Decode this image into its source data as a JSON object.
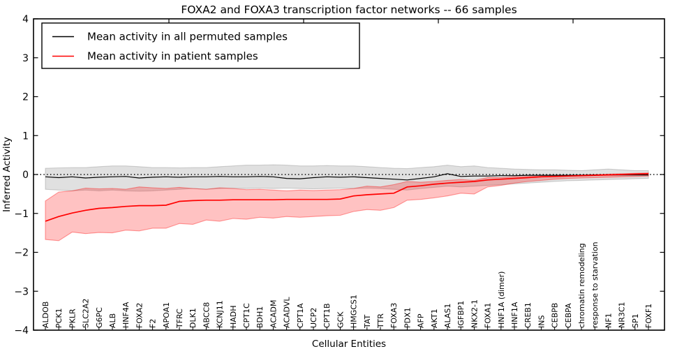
{
  "title": "FOXA2 and FOXA3 transcription factor networks -- 66 samples",
  "axes": {
    "ylabel": "Inferred Activity",
    "xlabel": "Cellular Entities",
    "y_ticks": [
      4,
      3,
      2,
      1,
      0,
      -1,
      -2,
      -3,
      -4
    ],
    "ylim": [
      -4,
      4
    ]
  },
  "legend": {
    "items": [
      {
        "label": "Mean activity in all permuted samples",
        "color": "#000000"
      },
      {
        "label": "Mean activity in patient samples",
        "color": "#ff0000"
      }
    ]
  },
  "colors": {
    "permuted_line": "#000000",
    "patient_line": "#ff0000",
    "permuted_band_fill": "rgba(0,0,0,0.12)",
    "permuted_band_edge": "rgba(0,0,0,0.16)",
    "patient_band_fill": "rgba(255,0,0,0.24)",
    "patient_band_edge": "rgba(255,0,0,0.38)",
    "zero_line": "#000000",
    "frame": "#000000"
  },
  "chart_data": {
    "type": "line",
    "title": "FOXA2 and FOXA3 transcription factor networks -- 66 samples",
    "xlabel": "Cellular Entities",
    "ylabel": "Inferred Activity",
    "ylim": [
      -4,
      4
    ],
    "grid": false,
    "legend_position": "upper left",
    "zero_reference_line": "dotted",
    "categories": [
      "ALDOB",
      "PCK1",
      "PKLR",
      "SLC2A2",
      "G6PC",
      "ALB",
      "HNF4A",
      "FOXA2",
      "F2",
      "APOA1",
      "TFRC",
      "DLK1",
      "ABCC8",
      "KCNJ11",
      "HADH",
      "CPT1C",
      "BDH1",
      "ACADM",
      "ACADVL",
      "CPT1A",
      "UCP2",
      "CPT1B",
      "GCK",
      "HMGCS1",
      "TAT",
      "TTR",
      "FOXA3",
      "PDX1",
      "AFP",
      "AKT1",
      "ALAS1",
      "IGFBP1",
      "NKX2-1",
      "FOXA1",
      "HNF1A (dimer)",
      "HNF1A",
      "CREB1",
      "INS",
      "CEBPB",
      "CEBPA",
      "chromatin remodeling",
      "response to starvation",
      "NF1",
      "NR3C1",
      "SP1",
      "FOXF1"
    ],
    "series": [
      {
        "name": "Mean activity in all permuted samples",
        "color": "#000000",
        "values": [
          -0.06,
          -0.08,
          -0.06,
          -0.09,
          -0.07,
          -0.06,
          -0.05,
          -0.09,
          -0.07,
          -0.06,
          -0.07,
          -0.06,
          -0.06,
          -0.05,
          -0.06,
          -0.06,
          -0.05,
          -0.06,
          -0.1,
          -0.11,
          -0.08,
          -0.06,
          -0.07,
          -0.06,
          -0.08,
          -0.1,
          -0.12,
          -0.14,
          -0.1,
          -0.06,
          0.02,
          -0.05,
          -0.04,
          -0.04,
          -0.03,
          -0.03,
          -0.02,
          -0.02,
          -0.02,
          -0.02,
          -0.02,
          -0.01,
          -0.01,
          -0.01,
          -0.01,
          -0.01
        ],
        "band_upper": [
          0.16,
          0.17,
          0.18,
          0.18,
          0.2,
          0.22,
          0.22,
          0.2,
          0.18,
          0.18,
          0.17,
          0.18,
          0.18,
          0.2,
          0.22,
          0.24,
          0.24,
          0.25,
          0.24,
          0.22,
          0.22,
          0.23,
          0.22,
          0.22,
          0.2,
          0.18,
          0.16,
          0.15,
          0.18,
          0.2,
          0.24,
          0.2,
          0.22,
          0.18,
          0.16,
          0.14,
          0.13,
          0.12,
          0.12,
          0.11,
          0.1,
          0.12,
          0.14,
          0.12,
          0.1,
          0.1
        ],
        "band_lower": [
          -0.38,
          -0.4,
          -0.42,
          -0.4,
          -0.42,
          -0.4,
          -0.42,
          -0.43,
          -0.42,
          -0.4,
          -0.38,
          -0.36,
          -0.38,
          -0.36,
          -0.35,
          -0.36,
          -0.35,
          -0.36,
          -0.35,
          -0.36,
          -0.37,
          -0.36,
          -0.35,
          -0.36,
          -0.35,
          -0.36,
          -0.38,
          -0.4,
          -0.36,
          -0.33,
          -0.3,
          -0.32,
          -0.3,
          -0.28,
          -0.26,
          -0.24,
          -0.22,
          -0.2,
          -0.18,
          -0.16,
          -0.15,
          -0.14,
          -0.13,
          -0.12,
          -0.11,
          -0.1
        ]
      },
      {
        "name": "Mean activity in patient samples",
        "color": "#ff0000",
        "values": [
          -1.2,
          -1.08,
          -0.99,
          -0.92,
          -0.87,
          -0.85,
          -0.82,
          -0.8,
          -0.8,
          -0.79,
          -0.69,
          -0.67,
          -0.66,
          -0.66,
          -0.65,
          -0.65,
          -0.65,
          -0.65,
          -0.64,
          -0.64,
          -0.64,
          -0.64,
          -0.63,
          -0.55,
          -0.52,
          -0.5,
          -0.48,
          -0.32,
          -0.29,
          -0.25,
          -0.22,
          -0.2,
          -0.18,
          -0.14,
          -0.12,
          -0.1,
          -0.08,
          -0.06,
          -0.05,
          -0.04,
          -0.03,
          -0.02,
          -0.01,
          0.0,
          0.01,
          0.02
        ],
        "band_upper": [
          -0.68,
          -0.45,
          -0.42,
          -0.35,
          -0.37,
          -0.36,
          -0.38,
          -0.32,
          -0.34,
          -0.36,
          -0.33,
          -0.36,
          -0.38,
          -0.34,
          -0.36,
          -0.39,
          -0.38,
          -0.4,
          -0.42,
          -0.4,
          -0.41,
          -0.4,
          -0.39,
          -0.36,
          -0.3,
          -0.32,
          -0.26,
          -0.18,
          -0.2,
          -0.18,
          -0.15,
          -0.13,
          -0.15,
          -0.08,
          -0.08,
          -0.06,
          -0.05,
          -0.04,
          -0.03,
          -0.02,
          -0.01,
          0.0,
          0.01,
          0.02,
          0.03,
          0.04
        ],
        "band_lower": [
          -1.67,
          -1.7,
          -1.48,
          -1.52,
          -1.49,
          -1.5,
          -1.43,
          -1.45,
          -1.38,
          -1.38,
          -1.26,
          -1.28,
          -1.17,
          -1.2,
          -1.13,
          -1.15,
          -1.1,
          -1.12,
          -1.08,
          -1.1,
          -1.08,
          -1.06,
          -1.05,
          -0.95,
          -0.9,
          -0.92,
          -0.85,
          -0.66,
          -0.64,
          -0.6,
          -0.55,
          -0.48,
          -0.5,
          -0.32,
          -0.28,
          -0.22,
          -0.18,
          -0.15,
          -0.12,
          -0.1,
          -0.09,
          -0.08,
          -0.07,
          -0.06,
          -0.05,
          -0.04
        ]
      }
    ]
  }
}
